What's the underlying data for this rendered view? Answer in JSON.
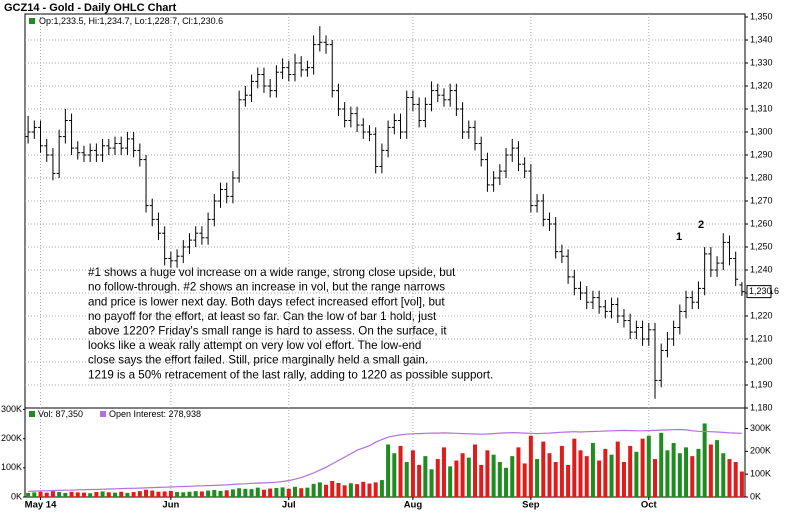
{
  "chart_data": [
    {
      "type": "ohlc",
      "title": "GCZ14 - Gold - Daily OHLC Chart",
      "legend_text": "Op:1,233.5, Hi:1,234.7, Lo:1,228.7, Cl:1,230.6",
      "last_label": "1,230.6",
      "annotations": [
        "1",
        "2"
      ],
      "note_lines": [
        "#1 shows a huge vol increase on a wide range, strong close upside, but",
        "no follow-through.  #2 shows an increase in vol, but the range narrows",
        "and price is lower next day.  Both days refect increased effort [vol], but",
        "no payoff for the effort, at least so far.  Can the low of bar 1 hold, just",
        "above 1220?  Friday's small range is hard to assess.  On the surface, it",
        "looks like a weak rally attempt on very low vol effort.  The low-end",
        "close says the effort failed.  Still, price marginally held a small gain.",
        "1219 is a 50% retracement of the last rally, adding to 1220 as possible support."
      ],
      "color": "#000000",
      "grid": true,
      "ylim": [
        1180,
        1350
      ],
      "yticks": [
        {
          "value": 1180,
          "label": "1,180"
        },
        {
          "value": 1190,
          "label": "1,190"
        },
        {
          "value": 1200,
          "label": "1,200"
        },
        {
          "value": 1210,
          "label": "1,210"
        },
        {
          "value": 1220,
          "label": "1,220"
        },
        {
          "value": 1230,
          "label": "1,230"
        },
        {
          "value": 1240,
          "label": "1,240"
        },
        {
          "value": 1250,
          "label": "1,250"
        },
        {
          "value": 1260,
          "label": "1,260"
        },
        {
          "value": 1270,
          "label": "1,270"
        },
        {
          "value": 1280,
          "label": "1,280"
        },
        {
          "value": 1290,
          "label": "1,290"
        },
        {
          "value": 1300,
          "label": "1,300"
        },
        {
          "value": 1310,
          "label": "1,310"
        },
        {
          "value": 1320,
          "label": "1,320"
        },
        {
          "value": 1330,
          "label": "1,330"
        },
        {
          "value": 1340,
          "label": "1,340"
        },
        {
          "value": 1350,
          "label": "1,350"
        }
      ],
      "ohlc": [
        [
          1298,
          1307,
          1295,
          1300
        ],
        [
          1300,
          1305,
          1297,
          1302
        ],
        [
          1302,
          1305,
          1291,
          1294
        ],
        [
          1294,
          1297,
          1287,
          1290
        ],
        [
          1290,
          1293,
          1279,
          1282
        ],
        [
          1282,
          1301,
          1280,
          1298
        ],
        [
          1298,
          1310,
          1295,
          1305
        ],
        [
          1305,
          1308,
          1290,
          1293
        ],
        [
          1293,
          1296,
          1288,
          1291
        ],
        [
          1291,
          1294,
          1287,
          1290
        ],
        [
          1290,
          1295,
          1287,
          1292
        ],
        [
          1292,
          1295,
          1287,
          1290
        ],
        [
          1290,
          1297,
          1287,
          1294
        ],
        [
          1294,
          1297,
          1290,
          1293
        ],
        [
          1293,
          1298,
          1290,
          1295
        ],
        [
          1295,
          1298,
          1290,
          1293
        ],
        [
          1293,
          1300,
          1290,
          1297
        ],
        [
          1297,
          1300,
          1289,
          1292
        ],
        [
          1292,
          1295,
          1285,
          1288
        ],
        [
          1288,
          1290,
          1265,
          1268
        ],
        [
          1268,
          1271,
          1259,
          1262
        ],
        [
          1262,
          1265,
          1253,
          1256
        ],
        [
          1256,
          1259,
          1242,
          1245
        ],
        [
          1245,
          1248,
          1241,
          1244
        ],
        [
          1244,
          1249,
          1241,
          1246
        ],
        [
          1246,
          1253,
          1243,
          1250
        ],
        [
          1250,
          1256,
          1247,
          1253
        ],
        [
          1253,
          1259,
          1250,
          1256
        ],
        [
          1256,
          1259,
          1251,
          1254
        ],
        [
          1254,
          1265,
          1251,
          1262
        ],
        [
          1262,
          1273,
          1259,
          1270
        ],
        [
          1270,
          1278,
          1267,
          1275
        ],
        [
          1275,
          1278,
          1269,
          1272
        ],
        [
          1272,
          1283,
          1269,
          1280
        ],
        [
          1280,
          1318,
          1278,
          1314
        ],
        [
          1314,
          1320,
          1311,
          1316
        ],
        [
          1316,
          1325,
          1313,
          1322
        ],
        [
          1322,
          1328,
          1319,
          1325
        ],
        [
          1325,
          1328,
          1317,
          1320
        ],
        [
          1320,
          1323,
          1315,
          1318
        ],
        [
          1318,
          1329,
          1315,
          1326
        ],
        [
          1326,
          1332,
          1323,
          1328
        ],
        [
          1328,
          1331,
          1322,
          1325
        ],
        [
          1325,
          1334,
          1322,
          1330
        ],
        [
          1330,
          1333,
          1324,
          1327
        ],
        [
          1327,
          1331,
          1324,
          1328
        ],
        [
          1328,
          1342,
          1325,
          1338
        ],
        [
          1338,
          1346,
          1335,
          1339
        ],
        [
          1339,
          1342,
          1334,
          1338
        ],
        [
          1338,
          1340,
          1315,
          1318
        ],
        [
          1318,
          1321,
          1307,
          1310
        ],
        [
          1310,
          1313,
          1302,
          1305
        ],
        [
          1305,
          1311,
          1302,
          1308
        ],
        [
          1308,
          1311,
          1300,
          1303
        ],
        [
          1303,
          1306,
          1297,
          1300
        ],
        [
          1300,
          1303,
          1296,
          1299
        ],
        [
          1299,
          1302,
          1282,
          1285
        ],
        [
          1285,
          1295,
          1282,
          1292
        ],
        [
          1292,
          1305,
          1289,
          1302
        ],
        [
          1302,
          1308,
          1299,
          1305
        ],
        [
          1305,
          1308,
          1297,
          1300
        ],
        [
          1300,
          1318,
          1297,
          1315
        ],
        [
          1315,
          1318,
          1309,
          1312
        ],
        [
          1312,
          1315,
          1302,
          1305
        ],
        [
          1305,
          1315,
          1302,
          1312
        ],
        [
          1312,
          1322,
          1309,
          1318
        ],
        [
          1318,
          1321,
          1313,
          1316
        ],
        [
          1316,
          1319,
          1311,
          1314
        ],
        [
          1314,
          1321,
          1311,
          1318
        ],
        [
          1318,
          1321,
          1307,
          1310
        ],
        [
          1310,
          1313,
          1297,
          1300
        ],
        [
          1300,
          1305,
          1297,
          1302
        ],
        [
          1302,
          1305,
          1292,
          1295
        ],
        [
          1295,
          1298,
          1285,
          1288
        ],
        [
          1288,
          1291,
          1274,
          1277
        ],
        [
          1277,
          1283,
          1274,
          1280
        ],
        [
          1280,
          1286,
          1277,
          1283
        ],
        [
          1283,
          1293,
          1280,
          1290
        ],
        [
          1290,
          1297,
          1287,
          1293
        ],
        [
          1293,
          1296,
          1283,
          1286
        ],
        [
          1286,
          1289,
          1280,
          1283
        ],
        [
          1283,
          1286,
          1265,
          1268
        ],
        [
          1268,
          1273,
          1265,
          1270
        ],
        [
          1270,
          1273,
          1259,
          1262
        ],
        [
          1262,
          1265,
          1257,
          1260
        ],
        [
          1260,
          1263,
          1245,
          1248
        ],
        [
          1248,
          1251,
          1243,
          1246
        ],
        [
          1246,
          1249,
          1234,
          1237
        ],
        [
          1237,
          1240,
          1229,
          1232
        ],
        [
          1232,
          1235,
          1227,
          1230
        ],
        [
          1230,
          1233,
          1223,
          1226
        ],
        [
          1226,
          1231,
          1223,
          1228
        ],
        [
          1228,
          1231,
          1221,
          1224
        ],
        [
          1224,
          1227,
          1219,
          1222
        ],
        [
          1222,
          1228,
          1219,
          1225
        ],
        [
          1225,
          1228,
          1217,
          1220
        ],
        [
          1220,
          1223,
          1215,
          1218
        ],
        [
          1218,
          1221,
          1210,
          1213
        ],
        [
          1213,
          1218,
          1210,
          1215
        ],
        [
          1215,
          1218,
          1207,
          1210
        ],
        [
          1210,
          1217,
          1207,
          1214
        ],
        [
          1214,
          1217,
          1184,
          1192
        ],
        [
          1192,
          1208,
          1189,
          1205
        ],
        [
          1205,
          1213,
          1202,
          1210
        ],
        [
          1210,
          1218,
          1207,
          1215
        ],
        [
          1215,
          1225,
          1212,
          1222
        ],
        [
          1222,
          1231,
          1219,
          1228
        ],
        [
          1228,
          1231,
          1223,
          1226
        ],
        [
          1226,
          1235,
          1223,
          1232
        ],
        [
          1232,
          1250,
          1229,
          1247
        ],
        [
          1247,
          1250,
          1237,
          1240
        ],
        [
          1240,
          1246,
          1237,
          1243
        ],
        [
          1243,
          1256,
          1240,
          1252
        ],
        [
          1252,
          1255,
          1242,
          1245
        ],
        [
          1245,
          1248,
          1233,
          1236
        ],
        [
          1233.5,
          1234.7,
          1228.7,
          1230.6
        ]
      ]
    },
    {
      "type": "volume",
      "categories": [
        null,
        null,
        "May 14",
        null,
        null,
        null,
        null,
        null,
        null,
        null,
        null,
        null,
        null,
        null,
        null,
        null,
        null,
        null,
        null,
        null,
        null,
        null,
        null,
        "Jun",
        null,
        null,
        null,
        null,
        null,
        null,
        null,
        null,
        null,
        null,
        null,
        null,
        null,
        null,
        null,
        null,
        null,
        null,
        "Jul",
        null,
        null,
        null,
        null,
        null,
        null,
        null,
        null,
        null,
        null,
        null,
        null,
        null,
        null,
        null,
        null,
        null,
        null,
        null,
        "Aug",
        null,
        null,
        null,
        null,
        null,
        null,
        null,
        null,
        null,
        null,
        null,
        null,
        null,
        null,
        null,
        null,
        null,
        null,
        "Sep",
        null,
        null,
        null,
        null,
        null,
        null,
        null,
        null,
        null,
        null,
        null,
        null,
        null,
        null,
        null,
        null,
        null,
        null,
        "Oct",
        null,
        null,
        null,
        null,
        null,
        null,
        null,
        null,
        null,
        null,
        null,
        null,
        null,
        null,
        null
      ],
      "up_color": "#1e8c1e",
      "down_color": "#e01b1b",
      "ylim": [
        0,
        305
      ],
      "yticks": [
        {
          "value": 0,
          "label": "0K"
        },
        {
          "value": 100,
          "label": "100K"
        },
        {
          "value": 200,
          "label": "200K"
        },
        {
          "value": 300,
          "label": "300K"
        }
      ],
      "y2lim": [
        0,
        390
      ],
      "y2ticks": [
        {
          "value": 0,
          "label": "0K"
        },
        {
          "value": 100,
          "label": "100K"
        },
        {
          "value": 200,
          "label": "200K"
        },
        {
          "value": 300,
          "label": "300K"
        }
      ],
      "series": [
        {
          "name": "Vol: 87,350",
          "color": "#1e8c1e",
          "values": [
            14,
            16,
            18,
            15,
            20,
            17,
            14,
            18,
            16,
            15,
            13,
            17,
            19,
            16,
            15,
            18,
            14,
            17,
            20,
            25,
            22,
            18,
            19,
            21,
            17,
            16,
            18,
            20,
            19,
            22,
            24,
            21,
            23,
            26,
            30,
            28,
            27,
            32,
            25,
            29,
            31,
            33,
            28,
            35,
            30,
            32,
            45,
            50,
            42,
            55,
            48,
            40,
            47,
            44,
            52,
            46,
            50,
            58,
            180,
            150,
            175,
            120,
            160,
            110,
            140,
            95,
            130,
            170,
            105,
            125,
            150,
            135,
            180,
            110,
            160,
            145,
            120,
            100,
            140,
            170,
            115,
            210,
            130,
            190,
            150,
            120,
            175,
            110,
            200,
            160,
            140,
            185,
            125,
            165,
            145,
            190,
            120,
            175,
            155,
            200,
            210,
            130,
            220,
            160,
            185,
            150,
            170,
            140,
            165,
            252,
            180,
            195,
            150,
            130,
            120,
            87.35
          ]
        },
        {
          "name": "Open Interest: 278,938",
          "color": "#b46fe0",
          "axis": "y2",
          "values": [
            25,
            26,
            27,
            27,
            28,
            29,
            30,
            30,
            31,
            32,
            33,
            33,
            34,
            35,
            36,
            37,
            38,
            38,
            39,
            40,
            41,
            42,
            43,
            44,
            45,
            46,
            47,
            48,
            49,
            50,
            51,
            52,
            53,
            55,
            57,
            58,
            60,
            61,
            62,
            63,
            65,
            68,
            72,
            78,
            85,
            95,
            105,
            118,
            130,
            145,
            160,
            175,
            190,
            205,
            215,
            225,
            240,
            252,
            262,
            268,
            272,
            275,
            277,
            278,
            279,
            280,
            280,
            281,
            280,
            279,
            278,
            277,
            276,
            275,
            276,
            278,
            280,
            281,
            282,
            281,
            280,
            279,
            278,
            279,
            280,
            282,
            284,
            285,
            286,
            285,
            286,
            287,
            288,
            289,
            290,
            291,
            292,
            291,
            290,
            290,
            291,
            292,
            293,
            294,
            295,
            296,
            294,
            290,
            288,
            287,
            286,
            285,
            283,
            281,
            280,
            278.938
          ]
        }
      ]
    }
  ]
}
